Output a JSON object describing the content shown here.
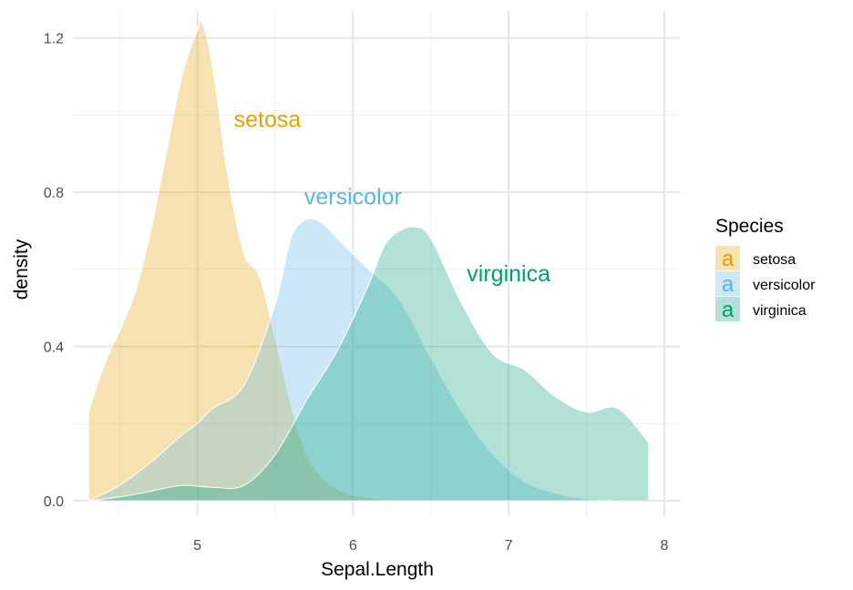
{
  "chart_data": {
    "type": "area",
    "xlabel": "Sepal.Length",
    "ylabel": "density",
    "xlim": [
      4.2,
      8.1
    ],
    "ylim": [
      -0.04,
      1.27
    ],
    "x_ticks": [
      5,
      6,
      7,
      8
    ],
    "x_tick_labels": [
      "5",
      "6",
      "7",
      "8"
    ],
    "y_ticks": [
      0.0,
      0.4,
      0.8,
      1.2
    ],
    "y_tick_labels": [
      "0.0",
      "0.4",
      "0.8",
      "1.2"
    ],
    "grid": true,
    "legend": {
      "title": "Species",
      "position": "right",
      "key_glyph": "a",
      "entries": [
        "setosa",
        "versicolor",
        "virginica"
      ]
    },
    "annotations": [
      {
        "text": "setosa",
        "x": 5.45,
        "y": 0.99,
        "color": "#E69F00"
      },
      {
        "text": "versicolor",
        "x": 6.0,
        "y": 0.79,
        "color": "#56B4E9"
      },
      {
        "text": "virginica",
        "x": 7.0,
        "y": 0.59,
        "color": "#009E73"
      }
    ],
    "series": [
      {
        "name": "setosa",
        "color": "#E69F00",
        "x": [
          4.3,
          4.4,
          4.5,
          4.6,
          4.7,
          4.8,
          4.9,
          5.0,
          5.03,
          5.1,
          5.2,
          5.3,
          5.4,
          5.5,
          5.6,
          5.7,
          5.8,
          5.9,
          6.0,
          6.1,
          6.2,
          6.3
        ],
        "y": [
          0.23,
          0.35,
          0.44,
          0.54,
          0.7,
          0.9,
          1.1,
          1.22,
          1.24,
          1.12,
          0.83,
          0.64,
          0.58,
          0.42,
          0.25,
          0.12,
          0.06,
          0.03,
          0.015,
          0.008,
          0.003,
          0.0
        ]
      },
      {
        "name": "versicolor",
        "color": "#56B4E9",
        "x": [
          4.3,
          4.5,
          4.7,
          4.9,
          5.0,
          5.1,
          5.3,
          5.5,
          5.6,
          5.7,
          5.8,
          5.9,
          6.0,
          6.1,
          6.3,
          6.5,
          6.7,
          6.9,
          7.1,
          7.3,
          7.5,
          7.7
        ],
        "y": [
          0.0,
          0.04,
          0.1,
          0.17,
          0.2,
          0.24,
          0.3,
          0.51,
          0.68,
          0.73,
          0.72,
          0.68,
          0.64,
          0.6,
          0.52,
          0.37,
          0.23,
          0.12,
          0.05,
          0.02,
          0.005,
          0.0
        ]
      },
      {
        "name": "virginica",
        "color": "#009E73",
        "x": [
          4.3,
          4.5,
          4.7,
          4.9,
          5.1,
          5.3,
          5.5,
          5.7,
          5.9,
          6.1,
          6.2,
          6.3,
          6.4,
          6.5,
          6.7,
          6.9,
          7.1,
          7.3,
          7.5,
          7.7,
          7.9
        ],
        "y": [
          0.0,
          0.01,
          0.025,
          0.04,
          0.035,
          0.04,
          0.12,
          0.26,
          0.39,
          0.56,
          0.66,
          0.7,
          0.71,
          0.68,
          0.51,
          0.38,
          0.34,
          0.27,
          0.23,
          0.24,
          0.15
        ]
      }
    ]
  }
}
